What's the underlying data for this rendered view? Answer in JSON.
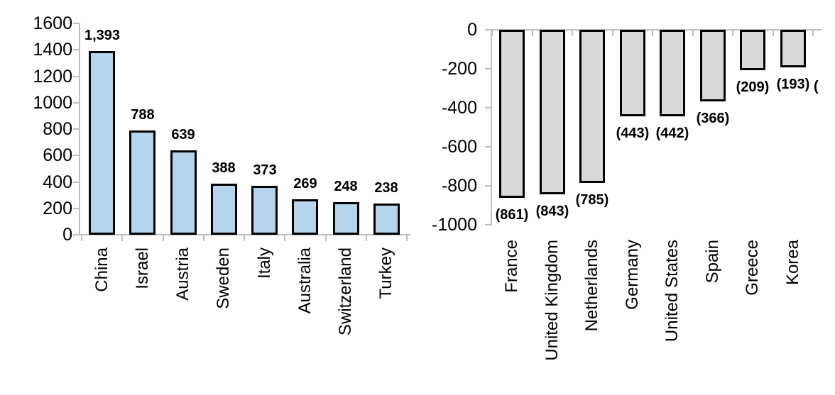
{
  "chart_data": [
    {
      "id": "left-chart",
      "type": "bar",
      "title": "",
      "xlabel": "",
      "ylabel": "",
      "categories": [
        "China",
        "Israel",
        "Austria",
        "Sweden",
        "Italy",
        "Australia",
        "Switzerland",
        "Turkey"
      ],
      "values": [
        1393,
        788,
        639,
        388,
        373,
        269,
        248,
        238
      ],
      "value_labels": [
        "1,393",
        "788",
        "639",
        "388",
        "373",
        "269",
        "248",
        "238"
      ],
      "y_ticks": [
        "1600",
        "1400",
        "1200",
        "1000",
        "800",
        "600",
        "400",
        "200",
        "0"
      ],
      "ylim": [
        0,
        1600
      ],
      "grid": "off",
      "legend": "none",
      "bar_fill": "#B5D5EE",
      "bar_border": "#000000",
      "axis_color": "#BFBFBF",
      "label_color": "#000000"
    },
    {
      "id": "right-chart",
      "type": "bar",
      "title": "",
      "xlabel": "",
      "ylabel": "",
      "categories": [
        "France",
        "United Kingdom",
        "Netherlands",
        "Germany",
        "United States",
        "Spain",
        "Greece",
        "Korea"
      ],
      "values": [
        -861,
        -843,
        -785,
        -443,
        -442,
        -366,
        -209,
        -193
      ],
      "value_labels": [
        "(861)",
        "(843)",
        "(785)",
        "(443)",
        "(442)",
        "(366)",
        "(209)",
        "(193)"
      ],
      "y_ticks": [
        "0",
        "-200",
        "-400",
        "-600",
        "-800",
        "-1000"
      ],
      "ylim": [
        -1000,
        0
      ],
      "grid": "off",
      "legend": "none",
      "bar_fill": "#D9D9D9",
      "bar_border": "#000000",
      "axis_color": "#BFBFBF",
      "label_color": "#000000",
      "truncated_next_label": "("
    }
  ]
}
